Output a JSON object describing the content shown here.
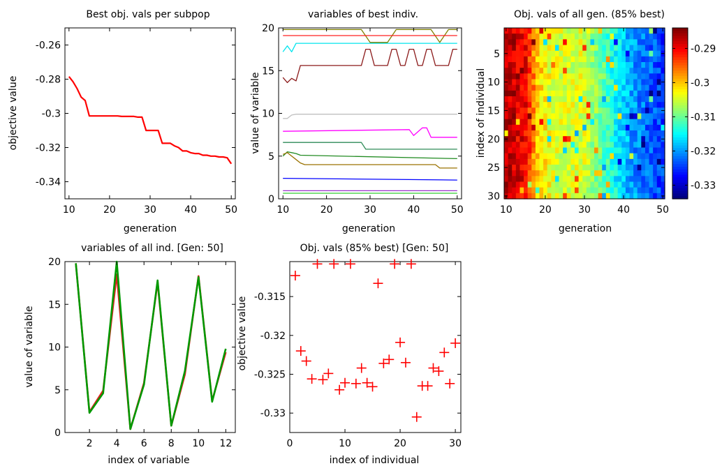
{
  "chart_data": [
    {
      "type": "line",
      "title": "Best obj. vals per subpop",
      "xlabel": "generation",
      "ylabel": "objective value",
      "xlim": [
        9,
        51
      ],
      "ylim": [
        -0.35,
        -0.25
      ],
      "xticks": [
        10,
        20,
        30,
        40,
        50
      ],
      "yticks": [
        -0.34,
        -0.32,
        -0.3,
        -0.28,
        -0.26
      ],
      "xticklabels": [
        "10",
        "20",
        "30",
        "40",
        "50"
      ],
      "yticklabels": [
        "-0.34",
        "-0.32",
        "-0.3",
        "-0.28",
        "-0.26"
      ],
      "series": [
        {
          "color": "#ff0000",
          "x": [
            10,
            11,
            12,
            13,
            14,
            15,
            16,
            17,
            18,
            19,
            20,
            21,
            22,
            23,
            24,
            25,
            26,
            27,
            28,
            29,
            30,
            31,
            32,
            33,
            34,
            35,
            36,
            37,
            38,
            39,
            40,
            41,
            42,
            43,
            44,
            45,
            46,
            47,
            48,
            49,
            50
          ],
          "y": [
            -0.2785,
            -0.2815,
            -0.2855,
            -0.2905,
            -0.2925,
            -0.3015,
            -0.3015,
            -0.3015,
            -0.3015,
            -0.3015,
            -0.3015,
            -0.3015,
            -0.3015,
            -0.3018,
            -0.3018,
            -0.3018,
            -0.3018,
            -0.3022,
            -0.3022,
            -0.31,
            -0.31,
            -0.31,
            -0.31,
            -0.3175,
            -0.3175,
            -0.3175,
            -0.319,
            -0.32,
            -0.322,
            -0.322,
            -0.323,
            -0.3235,
            -0.3235,
            -0.3245,
            -0.3245,
            -0.325,
            -0.325,
            -0.3255,
            -0.3255,
            -0.326,
            -0.3295
          ]
        }
      ]
    },
    {
      "type": "line",
      "title": "variables of best indiv.",
      "xlabel": "generation",
      "ylabel": "value of variable",
      "xlim": [
        9,
        51
      ],
      "ylim": [
        0,
        20
      ],
      "xticks": [
        10,
        20,
        30,
        40,
        50
      ],
      "yticks": [
        0,
        5,
        10,
        15,
        20
      ],
      "xticklabels": [
        "10",
        "20",
        "30",
        "40",
        "50"
      ],
      "yticklabels": [
        "0",
        "5",
        "10",
        "15",
        "20"
      ],
      "series": [
        {
          "color": "#808000",
          "x": [
            10,
            28,
            30,
            34,
            36,
            38,
            44,
            46,
            48,
            50
          ],
          "y": [
            19.8,
            19.8,
            18.3,
            18.3,
            19.8,
            19.8,
            19.8,
            18.3,
            19.8,
            19.8
          ]
        },
        {
          "color": "#ff2020",
          "x": [
            10,
            50
          ],
          "y": [
            19.1,
            19.1
          ]
        },
        {
          "color": "#00e5ee",
          "x": [
            10,
            11,
            12,
            13,
            50
          ],
          "y": [
            17.2,
            17.9,
            17.2,
            18.2,
            18.2
          ]
        },
        {
          "color": "#8b1a1a",
          "x": [
            10,
            11,
            12,
            13,
            14,
            15,
            28,
            29,
            30,
            31,
            32,
            33,
            34,
            35,
            36,
            37,
            38,
            39,
            40,
            41,
            42,
            43,
            44,
            45,
            46,
            47,
            48,
            49,
            50
          ],
          "y": [
            14.2,
            13.6,
            14.1,
            13.8,
            15.6,
            15.6,
            15.6,
            17.5,
            17.5,
            15.6,
            15.6,
            15.6,
            15.6,
            17.5,
            17.5,
            15.6,
            15.6,
            17.5,
            17.5,
            15.6,
            15.6,
            17.5,
            17.5,
            15.6,
            15.6,
            15.6,
            15.6,
            17.5,
            17.5
          ]
        },
        {
          "color": "#c0c0c0",
          "x": [
            10,
            11,
            12,
            13,
            50
          ],
          "y": [
            9.4,
            9.4,
            9.8,
            9.9,
            9.9
          ]
        },
        {
          "color": "#ff00ff",
          "x": [
            10,
            39,
            40,
            42,
            43,
            44,
            50
          ],
          "y": [
            7.9,
            8.1,
            7.4,
            8.3,
            8.3,
            7.2,
            7.2
          ]
        },
        {
          "color": "#2e8b57",
          "x": [
            10,
            28,
            29,
            50
          ],
          "y": [
            6.6,
            6.6,
            5.8,
            5.8
          ]
        },
        {
          "color": "#228b22",
          "x": [
            10,
            11,
            12,
            13,
            14,
            50
          ],
          "y": [
            5.0,
            5.5,
            5.4,
            5.3,
            5.1,
            4.7
          ]
        },
        {
          "color": "#9a7200",
          "x": [
            10,
            11,
            12,
            13,
            14,
            15,
            45,
            46,
            50
          ],
          "y": [
            5.2,
            5.4,
            5.0,
            4.6,
            4.2,
            4.0,
            4.0,
            3.6,
            3.6
          ]
        },
        {
          "color": "#0000ff",
          "x": [
            10,
            50
          ],
          "y": [
            2.4,
            2.2
          ]
        },
        {
          "color": "#9932cc",
          "x": [
            10,
            50
          ],
          "y": [
            0.95,
            0.95
          ]
        },
        {
          "color": "#32cd32",
          "x": [
            10,
            50
          ],
          "y": [
            0.65,
            0.65
          ]
        }
      ]
    },
    {
      "type": "heatmap",
      "title": "Obj. vals of all gen. (85% best)",
      "xlabel": "generation",
      "ylabel": "index of individual",
      "x_range": [
        10,
        50
      ],
      "y_range": [
        1,
        30
      ],
      "xticks": [
        10,
        20,
        30,
        40,
        50
      ],
      "yticks": [
        5,
        10,
        15,
        20,
        25,
        30
      ],
      "xticklabels": [
        "10",
        "20",
        "30",
        "40",
        "50"
      ],
      "yticklabels": [
        "5",
        "10",
        "15",
        "20",
        "25",
        "30"
      ],
      "colorbar": {
        "range": [
          -0.334,
          -0.284
        ],
        "ticks": [
          -0.33,
          -0.32,
          -0.31,
          -0.3,
          -0.29
        ],
        "ticklabels": [
          "-0.33",
          "-0.32",
          "-0.31",
          "-0.3",
          "-0.29"
        ],
        "colormap": "jet"
      },
      "value_profile_by_generation": [
        {
          "generation": 10,
          "value": -0.287
        },
        {
          "generation": 12,
          "value": -0.288
        },
        {
          "generation": 15,
          "value": -0.29
        },
        {
          "generation": 18,
          "value": -0.3
        },
        {
          "generation": 22,
          "value": -0.3045
        },
        {
          "generation": 30,
          "value": -0.3045
        },
        {
          "generation": 35,
          "value": -0.311
        },
        {
          "generation": 40,
          "value": -0.318
        },
        {
          "generation": 45,
          "value": -0.322
        },
        {
          "generation": 50,
          "value": -0.325
        }
      ]
    },
    {
      "type": "line",
      "title": "variables of all ind. [Gen: 50]",
      "xlabel": "index of variable",
      "ylabel": "value of variable",
      "xlim": [
        0.2,
        12.7
      ],
      "ylim": [
        0,
        20
      ],
      "xticks": [
        2,
        4,
        6,
        8,
        10,
        12
      ],
      "yticks": [
        0,
        5,
        10,
        15,
        20
      ],
      "xticklabels": [
        "2",
        "4",
        "6",
        "8",
        "10",
        "12"
      ],
      "yticklabels": [
        "0",
        "5",
        "10",
        "15",
        "20"
      ],
      "series": [
        {
          "color": "#e02020",
          "x": [
            1,
            2,
            3,
            4,
            5,
            6,
            7,
            8,
            9,
            10,
            11,
            12
          ],
          "y": [
            19.8,
            2.4,
            4.9,
            18.5,
            0.4,
            5.8,
            17.6,
            0.8,
            6.8,
            18.3,
            3.7,
            9.4
          ]
        },
        {
          "color": "#009900",
          "x": [
            1,
            2,
            3,
            4,
            5,
            6,
            7,
            8,
            9,
            10,
            11,
            12
          ],
          "y": [
            19.8,
            2.3,
            4.6,
            20.0,
            0.4,
            5.6,
            17.8,
            0.8,
            7.2,
            18.2,
            3.6,
            9.8
          ]
        }
      ]
    },
    {
      "type": "scatter",
      "title": "Obj. vals (85% best) [Gen: 50]",
      "xlabel": "index of individual",
      "ylabel": "objective value",
      "xlim": [
        0,
        31
      ],
      "ylim": [
        -0.3325,
        -0.3105
      ],
      "xticks": [
        0,
        10,
        20,
        30
      ],
      "yticks": [
        -0.33,
        -0.325,
        -0.32,
        -0.315
      ],
      "xticklabels": [
        "0",
        "10",
        "20",
        "30"
      ],
      "yticklabels": [
        "-0.33",
        "-0.325",
        "-0.32",
        "-0.315"
      ],
      "marker": "+",
      "color": "#ff0000",
      "x": [
        1,
        2,
        3,
        4,
        5,
        6,
        7,
        8,
        9,
        10,
        11,
        12,
        13,
        14,
        15,
        16,
        17,
        18,
        19,
        20,
        21,
        22,
        23,
        24,
        25,
        26,
        27,
        28,
        29,
        30
      ],
      "y": [
        -0.3123,
        -0.322,
        -0.3233,
        -0.3256,
        -0.3108,
        -0.3257,
        -0.3249,
        -0.3108,
        -0.327,
        -0.3261,
        -0.3108,
        -0.3262,
        -0.3242,
        -0.3261,
        -0.3266,
        -0.3133,
        -0.3236,
        -0.3231,
        -0.3108,
        -0.3209,
        -0.3235,
        -0.3108,
        -0.3305,
        -0.3265,
        -0.3265,
        -0.3242,
        -0.3246,
        -0.3222,
        -0.3262,
        -0.321
      ]
    }
  ]
}
